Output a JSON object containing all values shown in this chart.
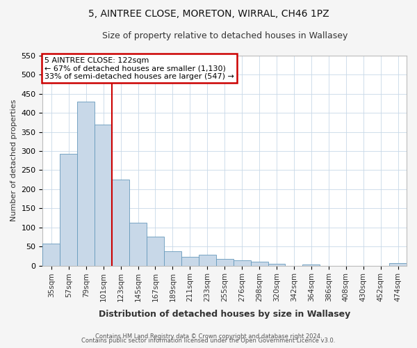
{
  "title": "5, AINTREE CLOSE, MORETON, WIRRAL, CH46 1PZ",
  "subtitle": "Size of property relative to detached houses in Wallasey",
  "xlabel": "Distribution of detached houses by size in Wallasey",
  "ylabel": "Number of detached properties",
  "bin_labels": [
    "35sqm",
    "57sqm",
    "79sqm",
    "101sqm",
    "123sqm",
    "145sqm",
    "167sqm",
    "189sqm",
    "211sqm",
    "233sqm",
    "255sqm",
    "276sqm",
    "298sqm",
    "320sqm",
    "342sqm",
    "364sqm",
    "386sqm",
    "408sqm",
    "430sqm",
    "452sqm",
    "474sqm"
  ],
  "bar_values": [
    57,
    293,
    430,
    370,
    226,
    113,
    76,
    38,
    22,
    29,
    18,
    13,
    11,
    5,
    0,
    2,
    0,
    0,
    0,
    0,
    6
  ],
  "bar_color": "#c8d8e8",
  "bar_edgecolor": "#6699bb",
  "vline_index": 4,
  "marker_label": "5 AINTREE CLOSE: 122sqm",
  "annotation_line1": "← 67% of detached houses are smaller (1,130)",
  "annotation_line2": "33% of semi-detached houses are larger (547) →",
  "annotation_box_edgecolor": "#cc0000",
  "vline_color": "#cc0000",
  "ylim": [
    0,
    550
  ],
  "yticks": [
    0,
    50,
    100,
    150,
    200,
    250,
    300,
    350,
    400,
    450,
    500,
    550
  ],
  "footer_line1": "Contains HM Land Registry data © Crown copyright and database right 2024.",
  "footer_line2": "Contains public sector information licensed under the Open Government Licence v3.0.",
  "bg_color": "#f5f5f5",
  "plot_bg_color": "#ffffff",
  "grid_color": "#c8d8e8"
}
